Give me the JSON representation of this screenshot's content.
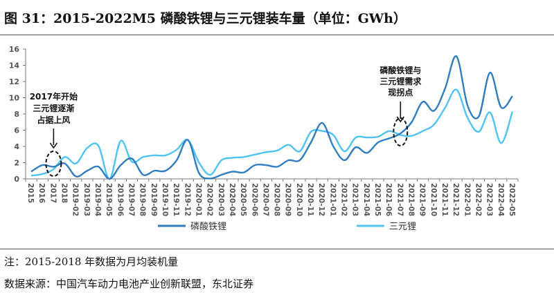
{
  "title": "图 31：2015-2022M5 磷酸铁锂与三元锂装车量（单位：GWh）",
  "note": "注：2015-2018 年数据为月均装机量",
  "source": "数据来源：中国汽车动力电池产业创新联盟，东北证券",
  "chart_data": {
    "type": "line",
    "title": "",
    "xlabel": "",
    "ylabel": "",
    "ylim": [
      0,
      16
    ],
    "yticks": [
      0,
      2,
      4,
      6,
      8,
      10,
      12,
      14,
      16
    ],
    "grid": false,
    "smooth": true,
    "legend_position": "bottom",
    "categories": [
      "2015",
      "2016",
      "2017",
      "2018",
      "2019-02",
      "2019-03",
      "2019-04",
      "2019-05",
      "2019-06",
      "2019-07",
      "2019-08",
      "2019-09",
      "2019-10",
      "2019-11",
      "2019-12",
      "2020-01",
      "2020-02",
      "2020-03",
      "2020-04",
      "2020-05",
      "2020-06",
      "2020-07",
      "2020-08",
      "2020-09",
      "2020-10",
      "2020-11",
      "2020-12",
      "2021-01",
      "2021-02",
      "2021-03",
      "2021-04",
      "2021-05",
      "2021-06",
      "2021-07",
      "2021-08",
      "2021-09",
      "2021-10",
      "2021-11",
      "2021-12",
      "2022-01",
      "2022-02",
      "2022-03",
      "2022-04",
      "2022-05"
    ],
    "series": [
      {
        "name": "磷酸铁锂",
        "color": "#2f7dc0",
        "values": [
          0.9,
          1.7,
          1.5,
          1.9,
          0.3,
          1.0,
          1.5,
          0,
          1.7,
          2.5,
          0.5,
          1.0,
          1.0,
          2.3,
          4.8,
          0.7,
          0.05,
          0.5,
          0.9,
          0.8,
          1.7,
          1.7,
          1.5,
          2.3,
          2.3,
          4.5,
          6.9,
          4.0,
          2.3,
          3.9,
          3.2,
          4.5,
          5.0,
          5.6,
          7.0,
          9.5,
          8.4,
          11.2,
          15.1,
          9.0,
          7.7,
          13.1,
          8.8,
          10.2
        ]
      },
      {
        "name": "三元锂",
        "color": "#4fc3f2",
        "values": [
          0.4,
          0.6,
          1.2,
          2.7,
          1.9,
          3.8,
          4.1,
          0,
          4.7,
          2.1,
          2.7,
          2.9,
          2.9,
          3.6,
          4.8,
          2.0,
          0.5,
          2.3,
          2.6,
          2.7,
          3.0,
          3.3,
          3.5,
          4.2,
          3.4,
          5.8,
          5.9,
          5.4,
          3.4,
          5.1,
          5.1,
          5.2,
          5.9,
          5.4,
          5.3,
          5.9,
          6.7,
          8.8,
          11.0,
          7.5,
          5.8,
          8.2,
          4.4,
          8.3
        ]
      }
    ],
    "annotations": [
      {
        "text": [
          "2017年开始",
          "三元锂逐渐",
          "占据上风"
        ],
        "category": "2017"
      },
      {
        "text": [
          "磷酸铁锂与",
          "三元锂需求",
          "现拐点"
        ],
        "category": "2021-07"
      }
    ]
  }
}
